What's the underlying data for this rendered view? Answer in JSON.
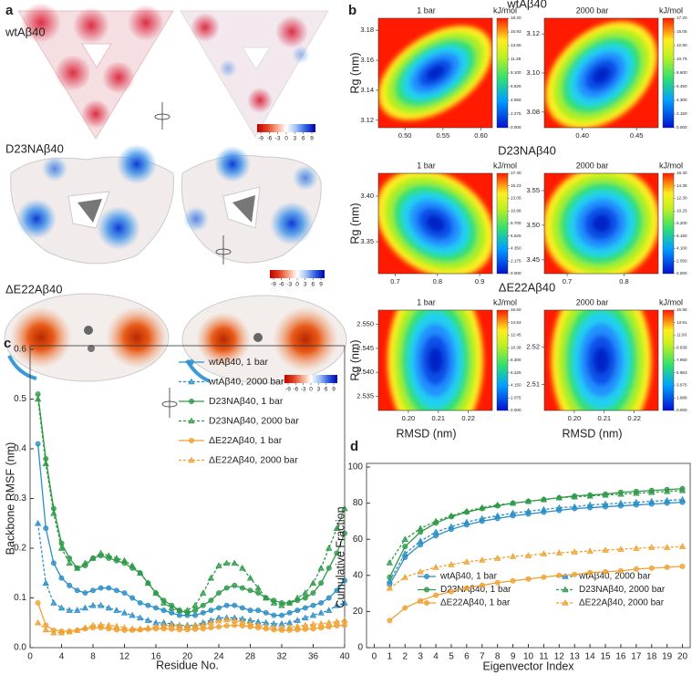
{
  "panel_labels": [
    "a",
    "b",
    "c",
    "d"
  ],
  "panel_a": {
    "structures": [
      {
        "label": "wtAβ40",
        "colorbar_ticks": [
          -9,
          -6,
          -3,
          0,
          3,
          6,
          9
        ]
      },
      {
        "label": "D23NAβ40",
        "colorbar_ticks": [
          -9,
          -6,
          -3,
          0,
          3,
          6,
          9
        ]
      },
      {
        "label": "ΔE22Aβ40",
        "colorbar_ticks": [
          -9,
          -6,
          -3,
          0,
          3,
          6,
          9
        ]
      }
    ]
  },
  "panel_b": {
    "row_labels": [
      "wtAβ40",
      "D23NAβ40",
      "ΔE22Aβ40"
    ],
    "ylabel": "Rg (nm)",
    "xlabel": "RMSD (nm)",
    "colorbar_title": "kJ/mol",
    "plots": [
      {
        "title": "1 bar",
        "xlim": [
          0.465,
          0.615
        ],
        "ylim": [
          3.115,
          3.188
        ],
        "xticks": [
          {
            "value": 0.5,
            "label": "0.50"
          },
          0.55,
          {
            "value": 0.6,
            "label": "0.60"
          }
        ],
        "yticks": [
          3.12,
          3.14,
          3.16,
          3.18
        ],
        "cticks": [
          {
            "value": 0,
            "label": "0.000"
          },
          2.275,
          {
            "value": 4.55,
            "label": "4.550"
          },
          6.825,
          {
            "value": 9.1,
            "label": "9.100"
          },
          11.38,
          13.65,
          15.93,
          {
            "value": 18.2,
            "label": "18.20"
          }
        ]
      },
      {
        "title": "2000 bar",
        "xlim": [
          0.365,
          0.47
        ],
        "ylim": [
          3.072,
          3.128
        ],
        "xticks": [
          {
            "value": 0.4,
            "label": "0.40"
          },
          0.45
        ],
        "yticks": [
          3.08,
          {
            "value": 3.1,
            "label": "3.10"
          },
          3.12
        ],
        "cticks": [
          {
            "value": 0,
            "label": "0.000"
          },
          {
            "value": 2.15,
            "label": "2.150"
          },
          {
            "value": 4.3,
            "label": "4.300"
          },
          {
            "value": 6.45,
            "label": "6.450"
          },
          {
            "value": 8.6,
            "label": "8.600"
          },
          10.75,
          {
            "value": 12.9,
            "label": "12.90"
          },
          15.05,
          {
            "value": 17.2,
            "label": "17.20"
          }
        ]
      },
      {
        "title": "1 bar",
        "xlim": [
          0.66,
          0.93
        ],
        "ylim": [
          3.315,
          3.425
        ],
        "xticks": [
          0.7,
          0.8,
          0.9
        ],
        "yticks": [
          3.35,
          {
            "value": 3.4,
            "label": "3.40"
          }
        ],
        "cticks": [
          {
            "value": 0,
            "label": "0.000"
          },
          2.175,
          {
            "value": 4.35,
            "label": "4.350"
          },
          6.525,
          {
            "value": 8.7,
            "label": "8.700"
          },
          10.88,
          13.05,
          15.23,
          {
            "value": 17.4,
            "label": "17.40"
          }
        ]
      },
      {
        "title": "2000 bar",
        "xlim": [
          0.66,
          0.86
        ],
        "ylim": [
          3.43,
          3.575
        ],
        "xticks": [
          0.7,
          0.8
        ],
        "yticks": [
          3.45,
          {
            "value": 3.5,
            "label": "3.50"
          },
          3.55
        ],
        "cticks": [
          {
            "value": 0,
            "label": "0.000"
          },
          {
            "value": 2.05,
            "label": "2.050"
          },
          {
            "value": 4.1,
            "label": "4.100"
          },
          {
            "value": 6.15,
            "label": "6.150"
          },
          {
            "value": 8.2,
            "label": "8.200"
          },
          10.25,
          {
            "value": 12.3,
            "label": "12.30"
          },
          14.35,
          {
            "value": 16.4,
            "label": "16.40"
          }
        ]
      },
      {
        "title": "1 bar",
        "xlim": [
          0.19,
          0.228
        ],
        "ylim": [
          2.532,
          2.553
        ],
        "xticks": [
          {
            "value": 0.2,
            "label": "0.20"
          },
          0.21,
          0.22
        ],
        "yticks": [
          2.535,
          {
            "value": 2.54,
            "label": "2.540"
          },
          2.545,
          {
            "value": 2.55,
            "label": "2.550"
          }
        ],
        "cticks": [
          {
            "value": 0,
            "label": "0.000"
          },
          2.075,
          {
            "value": 4.15,
            "label": "4.150"
          },
          6.225,
          {
            "value": 8.3,
            "label": "8.300"
          },
          10.38,
          12.45,
          14.53,
          {
            "value": 16.6,
            "label": "16.60"
          }
        ]
      },
      {
        "title": "2000 bar",
        "xlim": [
          0.19,
          0.228
        ],
        "ylim": [
          2.503,
          2.53
        ],
        "xticks": [
          {
            "value": 0.2,
            "label": "0.20"
          },
          0.21,
          0.22
        ],
        "yticks": [
          2.51,
          2.52
        ],
        "cticks": [
          {
            "value": 0,
            "label": "0.000"
          },
          1.988,
          3.975,
          5.963,
          {
            "value": 7.95,
            "label": "7.950"
          },
          9.938,
          11.93,
          13.91,
          {
            "value": 15.9,
            "label": "15.90"
          }
        ]
      }
    ]
  },
  "chart_data": [
    {
      "type": "line",
      "xlabel": "Residue No.",
      "ylabel": "Backbone RMSF (nm)",
      "legend": "upper right",
      "x": [
        1,
        2,
        3,
        4,
        5,
        6,
        7,
        8,
        9,
        10,
        11,
        12,
        13,
        14,
        15,
        16,
        17,
        18,
        19,
        20,
        21,
        22,
        23,
        24,
        25,
        26,
        27,
        28,
        29,
        30,
        31,
        32,
        33,
        34,
        35,
        36,
        37,
        38,
        39,
        40
      ],
      "xlim": [
        0,
        40
      ],
      "ylim": [
        0,
        0.6
      ],
      "xticks": [
        0,
        4,
        8,
        12,
        16,
        20,
        24,
        28,
        32,
        36,
        40
      ],
      "yticks": [
        {
          "value": 0,
          "label": "0.0"
        },
        0.1,
        0.2,
        0.3,
        0.4,
        0.5,
        0.6
      ],
      "series": [
        {
          "name": "wtAβ40, 1 bar",
          "color": "#2a8ec6",
          "marker": "circle",
          "dashed": false,
          "values": [
            0.41,
            0.24,
            0.17,
            0.14,
            0.125,
            0.115,
            0.11,
            0.115,
            0.12,
            0.12,
            0.115,
            0.11,
            0.1,
            0.09,
            0.085,
            0.08,
            0.075,
            0.07,
            0.065,
            0.065,
            0.065,
            0.07,
            0.075,
            0.08,
            0.085,
            0.085,
            0.08,
            0.075,
            0.075,
            0.07,
            0.065,
            0.065,
            0.07,
            0.075,
            0.08,
            0.085,
            0.09,
            0.1,
            0.115,
            0.135
          ]
        },
        {
          "name": "wtAβ40, 2000 bar",
          "color": "#2a8ec6",
          "marker": "triangle",
          "dashed": true,
          "values": [
            0.25,
            0.13,
            0.09,
            0.08,
            0.075,
            0.075,
            0.08,
            0.085,
            0.085,
            0.08,
            0.075,
            0.07,
            0.065,
            0.06,
            0.055,
            0.05,
            0.05,
            0.048,
            0.045,
            0.045,
            0.045,
            0.05,
            0.055,
            0.06,
            0.06,
            0.06,
            0.058,
            0.055,
            0.052,
            0.05,
            0.048,
            0.048,
            0.05,
            0.055,
            0.06,
            0.065,
            0.07,
            0.075,
            0.085,
            0.09
          ]
        },
        {
          "name": "D23NAβ40, 1 bar",
          "color": "#2e9a48",
          "marker": "circle",
          "dashed": false,
          "values": [
            0.51,
            0.38,
            0.28,
            0.21,
            0.18,
            0.16,
            0.165,
            0.18,
            0.185,
            0.18,
            0.175,
            0.17,
            0.16,
            0.15,
            0.13,
            0.11,
            0.095,
            0.085,
            0.075,
            0.07,
            0.075,
            0.085,
            0.095,
            0.11,
            0.12,
            0.125,
            0.12,
            0.115,
            0.11,
            0.1,
            0.095,
            0.09,
            0.09,
            0.095,
            0.1,
            0.11,
            0.13,
            0.16,
            0.19,
            0.23
          ]
        },
        {
          "name": "D23NAβ40, 2000 bar",
          "color": "#2e9a48",
          "marker": "triangle",
          "dashed": true,
          "values": [
            0.5,
            0.37,
            0.27,
            0.2,
            0.17,
            0.16,
            0.17,
            0.18,
            0.19,
            0.185,
            0.18,
            0.175,
            0.165,
            0.15,
            0.13,
            0.11,
            0.09,
            0.08,
            0.075,
            0.075,
            0.085,
            0.11,
            0.14,
            0.165,
            0.17,
            0.17,
            0.16,
            0.14,
            0.12,
            0.1,
            0.09,
            0.085,
            0.09,
            0.1,
            0.11,
            0.13,
            0.16,
            0.2,
            0.24,
            0.28
          ]
        },
        {
          "name": "ΔE22Aβ40, 1 bar",
          "color": "#f0a030",
          "marker": "circle",
          "dashed": false,
          "values": [
            0.09,
            0.045,
            0.035,
            0.033,
            0.033,
            0.035,
            0.038,
            0.04,
            0.04,
            0.038,
            0.036,
            0.035,
            0.035,
            0.036,
            0.037,
            0.038,
            0.038,
            0.037,
            0.036,
            0.036,
            0.037,
            0.038,
            0.04,
            0.042,
            0.044,
            0.045,
            0.044,
            0.042,
            0.04,
            0.038,
            0.036,
            0.035,
            0.035,
            0.036,
            0.037,
            0.038,
            0.04,
            0.042,
            0.044,
            0.045
          ]
        },
        {
          "name": "ΔE22Aβ40, 2000 bar",
          "color": "#f0a030",
          "marker": "triangle",
          "dashed": true,
          "values": [
            0.05,
            0.036,
            0.03,
            0.03,
            0.032,
            0.035,
            0.04,
            0.045,
            0.046,
            0.045,
            0.043,
            0.04,
            0.038,
            0.038,
            0.04,
            0.042,
            0.044,
            0.045,
            0.044,
            0.043,
            0.044,
            0.046,
            0.05,
            0.054,
            0.056,
            0.055,
            0.052,
            0.048,
            0.045,
            0.042,
            0.04,
            0.04,
            0.041,
            0.043,
            0.045,
            0.047,
            0.048,
            0.05,
            0.052,
            0.055
          ]
        }
      ]
    },
    {
      "type": "line",
      "xlabel": "Eigenvector Index",
      "ylabel": "Cumulative Fraction",
      "legend": "lower right",
      "x": [
        1,
        2,
        3,
        4,
        5,
        6,
        7,
        8,
        9,
        10,
        11,
        12,
        13,
        14,
        15,
        16,
        17,
        18,
        19,
        20
      ],
      "xlim": [
        -0.5,
        20.5
      ],
      "ylim": [
        0,
        100
      ],
      "xticks": [
        0,
        1,
        2,
        3,
        4,
        5,
        6,
        7,
        8,
        9,
        10,
        11,
        12,
        13,
        14,
        15,
        16,
        17,
        18,
        19,
        20
      ],
      "yticks": [
        0,
        20,
        40,
        60,
        80,
        100
      ],
      "series": [
        {
          "name": "wtAβ40, 1 bar",
          "color": "#2a8ec6",
          "marker": "circle",
          "dashed": false,
          "values": [
            35,
            50,
            57,
            62,
            65.5,
            68,
            70,
            71.5,
            73,
            74,
            75,
            76,
            77,
            77.5,
            78,
            78.5,
            79,
            79.5,
            80,
            80.5
          ]
        },
        {
          "name": "wtAβ40, 2000 bar",
          "color": "#2a8ec6",
          "marker": "triangle",
          "dashed": true,
          "values": [
            37,
            52,
            59,
            64,
            67,
            69.5,
            71.5,
            73,
            74.5,
            75.5,
            76.5,
            77.5,
            78,
            79,
            79.5,
            80,
            80.5,
            81,
            81.5,
            82
          ]
        },
        {
          "name": "D23NAβ40, 1 bar",
          "color": "#2e9a48",
          "marker": "circle",
          "dashed": false,
          "values": [
            39,
            56,
            64,
            69,
            72.5,
            75,
            77,
            78.5,
            80,
            81,
            82,
            83,
            84,
            84.5,
            85,
            86,
            86.5,
            87,
            87.5,
            88
          ]
        },
        {
          "name": "D23NAβ40, 2000 bar",
          "color": "#2e9a48",
          "marker": "triangle",
          "dashed": true,
          "values": [
            47,
            60,
            66,
            70,
            73,
            75.5,
            77.5,
            79,
            80,
            81,
            82,
            83,
            83.5,
            84,
            84.5,
            85,
            85.5,
            86,
            86.5,
            87
          ]
        },
        {
          "name": "ΔE22Aβ40, 1 bar",
          "color": "#f0a030",
          "marker": "circle",
          "dashed": false,
          "values": [
            15,
            22,
            26,
            29,
            31,
            33,
            34.5,
            36,
            37,
            38,
            39,
            40,
            40.5,
            41.5,
            42,
            42.5,
            43.5,
            44,
            44.5,
            45
          ]
        },
        {
          "name": "ΔE22Aβ40, 2000 bar",
          "color": "#f0a030",
          "marker": "triangle",
          "dashed": true,
          "values": [
            33,
            39,
            42,
            44.5,
            46,
            47.5,
            48.5,
            49.5,
            50.5,
            51,
            52,
            52.5,
            53,
            53.5,
            54,
            54.5,
            55,
            55.5,
            55.5,
            56
          ]
        }
      ]
    }
  ]
}
